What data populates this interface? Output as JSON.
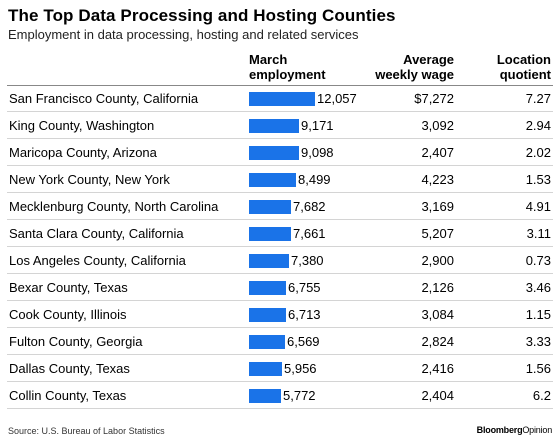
{
  "header": {
    "title": "The Top Data Processing and Hosting Counties",
    "subtitle": "Employment in data processing, hosting and related services"
  },
  "columns": {
    "employment_line1": "March",
    "employment_line2": "employment",
    "wage_line1": "Average",
    "wage_line2": "weekly wage",
    "lq_line1": "Location",
    "lq_line2": "quotient"
  },
  "colors": {
    "bar": "#1a73e8"
  },
  "chart_data": {
    "type": "bar",
    "orientation": "horizontal",
    "title": "The Top Data Processing and Hosting Counties",
    "subtitle": "Employment in data processing, hosting and related services",
    "categories": [
      "San Francisco County, California",
      "King County, Washington",
      "Maricopa County, Arizona",
      "New York County, New York",
      "Mecklenburg County, North Carolina",
      "Santa Clara County, California",
      "Los Angeles County, California",
      "Bexar County, Texas",
      "Cook County, Illinois",
      "Fulton County, Georgia",
      "Dallas County, Texas",
      "Collin County, Texas"
    ],
    "values": [
      12057,
      9171,
      9098,
      8499,
      7682,
      7661,
      7380,
      6755,
      6713,
      6569,
      5956,
      5772
    ],
    "value_labels": [
      "12,057",
      "9,171",
      "9,098",
      "8,499",
      "7,682",
      "7,661",
      "7,380",
      "6,755",
      "6,713",
      "6,569",
      "5,956",
      "5,772"
    ],
    "wages": [
      "$7,272",
      "3,092",
      "2,407",
      "4,223",
      "3,169",
      "5,207",
      "2,900",
      "2,126",
      "3,084",
      "2,824",
      "2,416",
      "2,404"
    ],
    "location_quotients": [
      "7.27",
      "2.94",
      "2.02",
      "1.53",
      "4.91",
      "3.11",
      "0.73",
      "3.46",
      "1.15",
      "3.33",
      "1.56",
      "6.2"
    ],
    "xlim": [
      0,
      12057
    ]
  },
  "footer": {
    "source": "Source: U.S. Bureau of Labor Statistics",
    "brand_bold": "Bloomberg",
    "brand_regular": "Opinion"
  }
}
